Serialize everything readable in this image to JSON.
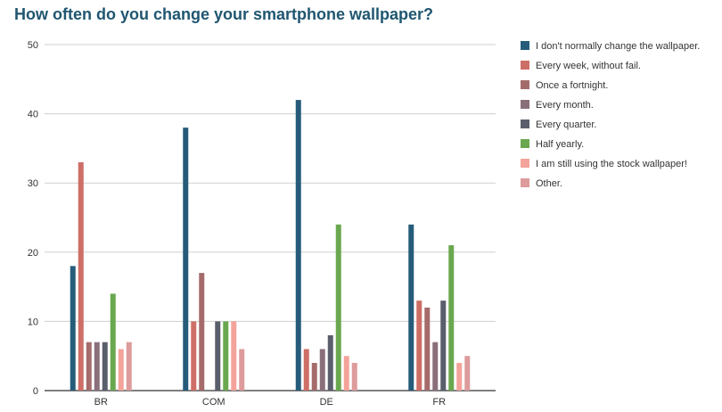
{
  "chart_data": {
    "type": "bar",
    "title": "How often do you change your smartphone wallpaper?",
    "xlabel": "",
    "ylabel": "",
    "ylim": [
      0,
      50
    ],
    "yticks": [
      0,
      10,
      20,
      30,
      40,
      50
    ],
    "grid": true,
    "legend_position": "right",
    "categories": [
      "BR",
      "COM",
      "DE",
      "FR"
    ],
    "series": [
      {
        "name": "I don't normally change the wallpaper.",
        "color": "#265c7a",
        "values": [
          18,
          38,
          42,
          24
        ]
      },
      {
        "name": "Every week, without fail.",
        "color": "#cd6e67",
        "values": [
          33,
          10,
          6,
          13
        ]
      },
      {
        "name": "Once a fortnight.",
        "color": "#a56b6b",
        "values": [
          7,
          17,
          4,
          12
        ]
      },
      {
        "name": "Every month.",
        "color": "#8a6f7b",
        "values": [
          7,
          0,
          6,
          7
        ]
      },
      {
        "name": "Every quarter.",
        "color": "#5b5e6c",
        "values": [
          7,
          10,
          8,
          13
        ]
      },
      {
        "name": "Half yearly.",
        "color": "#6aa84f",
        "values": [
          14,
          10,
          24,
          21
        ]
      },
      {
        "name": "I am still using the stock wallpaper!",
        "color": "#f4a39a",
        "values": [
          6,
          10,
          5,
          4
        ]
      },
      {
        "name": "Other.",
        "color": "#dd9b9b",
        "values": [
          7,
          6,
          4,
          5
        ]
      }
    ]
  }
}
